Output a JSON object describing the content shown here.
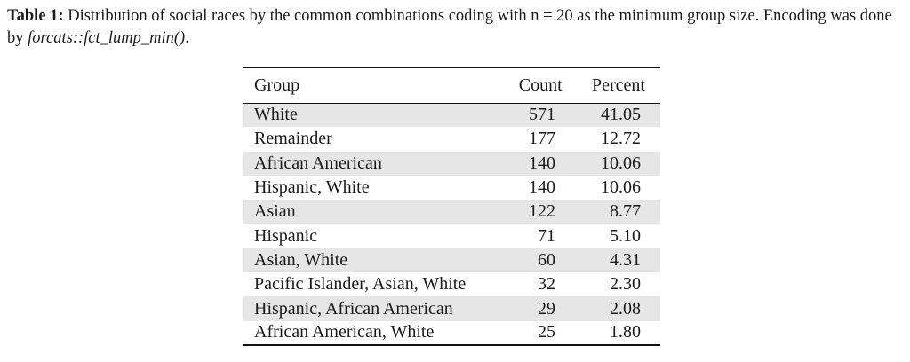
{
  "caption": {
    "label": "Table 1:",
    "text_before": " Distribution of social races by the common combinations coding with n = 20 as the minimum group size. Encoding was done by ",
    "code": "forcats::fct_lump_min()",
    "text_after": "."
  },
  "table": {
    "headers": {
      "group": "Group",
      "count": "Count",
      "percent": "Percent"
    },
    "rows": [
      {
        "group": "White",
        "count": "571",
        "percent": "41.05"
      },
      {
        "group": "Remainder",
        "count": "177",
        "percent": "12.72"
      },
      {
        "group": "African American",
        "count": "140",
        "percent": "10.06"
      },
      {
        "group": "Hispanic, White",
        "count": "140",
        "percent": "10.06"
      },
      {
        "group": "Asian",
        "count": "122",
        "percent": "8.77"
      },
      {
        "group": "Hispanic",
        "count": "71",
        "percent": "5.10"
      },
      {
        "group": "Asian, White",
        "count": "60",
        "percent": "4.31"
      },
      {
        "group": "Pacific Islander, Asian, White",
        "count": "32",
        "percent": "2.30"
      },
      {
        "group": "Hispanic, African American",
        "count": "29",
        "percent": "2.08"
      },
      {
        "group": "African American, White",
        "count": "25",
        "percent": "1.80"
      }
    ],
    "row_shading": "alternate",
    "shade_color": "#e6e6e6"
  }
}
